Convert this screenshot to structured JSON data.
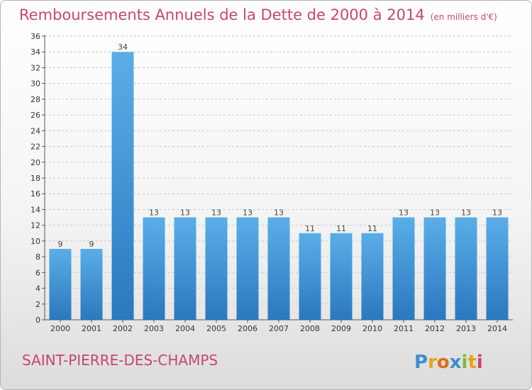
{
  "header": {
    "title": "Remboursements Annuels de la Dette de 2000 à 2014",
    "unit": "(en milliers d'€)"
  },
  "footer": {
    "commune": "SAINT-PIERRE-DES-CHAMPS",
    "logo_text": "Proxiti"
  },
  "colors": {
    "title": "#c8456e",
    "bar_top": "#5aaee8",
    "bar_bottom": "#2a78bf",
    "grid": "#c8c8c8"
  },
  "chart_data": {
    "type": "bar",
    "title": "Remboursements Annuels de la Dette de 2000 à 2014",
    "subtitle": "(en milliers d'€)",
    "xlabel": "",
    "ylabel": "",
    "categories": [
      "2000",
      "2001",
      "2002",
      "2003",
      "2004",
      "2005",
      "2006",
      "2007",
      "2008",
      "2009",
      "2010",
      "2011",
      "2012",
      "2013",
      "2014"
    ],
    "values": [
      9,
      9,
      34,
      13,
      13,
      13,
      13,
      13,
      11,
      11,
      11,
      13,
      13,
      13,
      13
    ],
    "ylim": [
      0,
      36
    ],
    "ytick_step": 2,
    "grid": "horizontal dashed",
    "legend": "none",
    "data_labels": true
  }
}
